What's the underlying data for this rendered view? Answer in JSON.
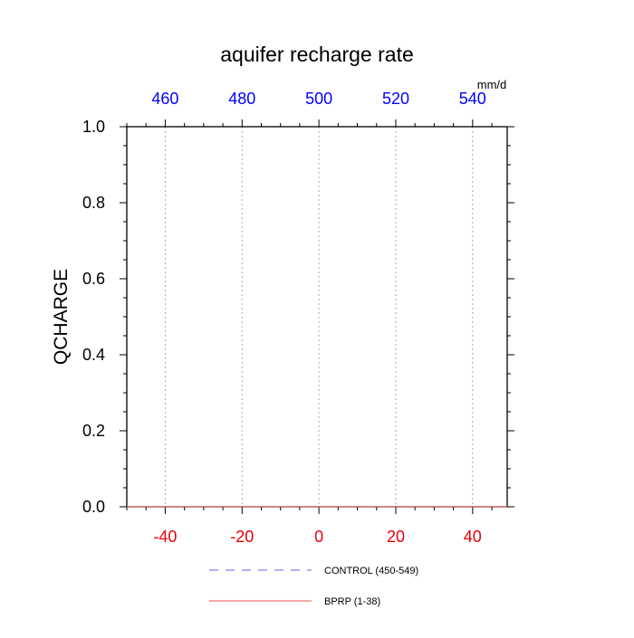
{
  "chart_data": {
    "type": "line",
    "title": "aquifer recharge rate",
    "ylabel": "QCHARGE",
    "xlabel": "",
    "units": "mm/d",
    "xlim": [
      -50,
      49
    ],
    "ylim": [
      0.0,
      1.0
    ],
    "x_ticks": [
      -40,
      -20,
      0,
      20,
      40
    ],
    "x_tick_labels": [
      "-40",
      "-20",
      "0",
      "20",
      "40"
    ],
    "top_ticks": [
      460,
      480,
      500,
      520,
      540
    ],
    "top_tick_labels": [
      "460",
      "480",
      "500",
      "520",
      "540"
    ],
    "y_ticks": [
      0.0,
      0.2,
      0.4,
      0.6,
      0.8,
      1.0
    ],
    "y_tick_labels": [
      "0.0",
      "0.2",
      "0.4",
      "0.6",
      "0.8",
      "1.0"
    ],
    "grid": "vertical dotted lines at x ticks",
    "series": [
      {
        "name": "CONTROL (450-549)",
        "color": "#6666dd",
        "dash": "dashed",
        "x": [
          -50,
          49
        ],
        "y": [
          0.0,
          0.0
        ]
      },
      {
        "name": "BPRP (1-38)",
        "color": "#ee5555",
        "dash": "solid",
        "x": [
          -50,
          49
        ],
        "y": [
          0.0,
          0.0
        ]
      }
    ],
    "legend_placement": "below plot",
    "colors": {
      "bottom_axis_labels": "#e8000b",
      "top_axis_labels": "#0000ff",
      "axis": "#000000",
      "grid": "#aaaaaa"
    }
  }
}
